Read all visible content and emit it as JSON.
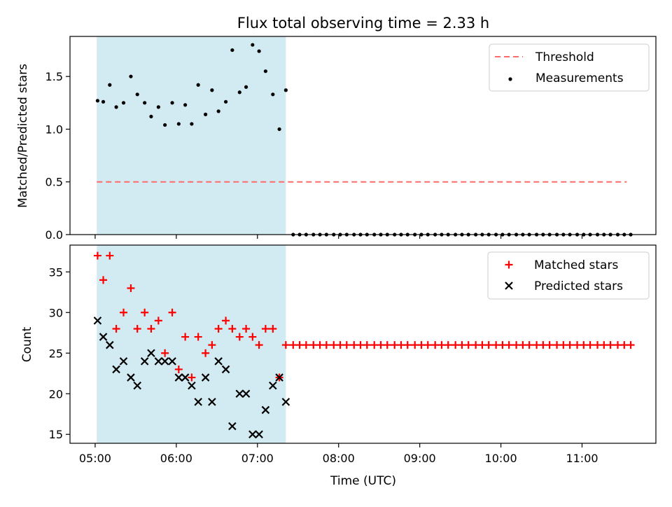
{
  "chart_data": [
    {
      "type": "scatter",
      "title": "Flux total observing time = 2.33 h",
      "xlabel": "",
      "ylabel": "Matched/Predicted stars",
      "ylim": [
        0,
        1.88
      ],
      "yticks": [
        "0.0",
        "0.5",
        "1.0",
        "1.5"
      ],
      "ytick_values": [
        0.0,
        0.5,
        1.0,
        1.5
      ],
      "xlim_hours": [
        4.69,
        11.91
      ],
      "shaded_region_hours": [
        5.02,
        7.35
      ],
      "shade_color": "#add8e6",
      "legend_position": "upper right",
      "threshold": {
        "name": "Threshold",
        "value": 0.5,
        "x_range_hours": [
          5.02,
          11.55
        ],
        "color": "#ff6b6b",
        "style": "dashed"
      },
      "series": [
        {
          "name": "Measurements",
          "color": "#000000",
          "marker": "dot",
          "x_hours": [
            5.03,
            5.1,
            5.18,
            5.26,
            5.35,
            5.44,
            5.52,
            5.61,
            5.69,
            5.78,
            5.86,
            5.95,
            6.03,
            6.11,
            6.19,
            6.27,
            6.36,
            6.44,
            6.52,
            6.61,
            6.69,
            6.78,
            6.86,
            6.94,
            7.02,
            7.1,
            7.19,
            7.27,
            7.35,
            7.44,
            7.52,
            7.6,
            7.69,
            7.77,
            7.85,
            7.94,
            8.02,
            8.1,
            8.19,
            8.27,
            8.35,
            8.44,
            8.52,
            8.6,
            8.69,
            8.77,
            8.85,
            8.94,
            9.02,
            9.1,
            9.19,
            9.27,
            9.35,
            9.44,
            9.52,
            9.6,
            9.69,
            9.77,
            9.85,
            9.94,
            10.02,
            10.1,
            10.19,
            10.27,
            10.35,
            10.44,
            10.52,
            10.6,
            10.69,
            10.77,
            10.85,
            10.94,
            11.02,
            11.1,
            11.19,
            11.27,
            11.35,
            11.44,
            11.52,
            11.6
          ],
          "values": [
            1.27,
            1.26,
            1.42,
            1.21,
            1.25,
            1.5,
            1.33,
            1.25,
            1.12,
            1.21,
            1.04,
            1.25,
            1.05,
            1.23,
            1.05,
            1.42,
            1.14,
            1.37,
            1.17,
            1.26,
            1.75,
            1.35,
            1.4,
            1.8,
            1.74,
            1.55,
            1.33,
            1.0,
            1.37,
            0,
            0,
            0,
            0,
            0,
            0,
            0,
            0,
            0,
            0,
            0,
            0,
            0,
            0,
            0,
            0,
            0,
            0,
            0,
            0,
            0,
            0,
            0,
            0,
            0,
            0,
            0,
            0,
            0,
            0,
            0,
            0,
            0,
            0,
            0,
            0,
            0,
            0,
            0,
            0,
            0,
            0,
            0,
            0,
            0,
            0,
            0,
            0,
            0,
            0,
            0
          ]
        }
      ]
    },
    {
      "type": "scatter",
      "xlabel": "Time (UTC)",
      "ylabel": "Count",
      "ylim": [
        13.9,
        38.3
      ],
      "yticks": [
        "15",
        "20",
        "25",
        "30",
        "35"
      ],
      "ytick_values": [
        15,
        20,
        25,
        30,
        35
      ],
      "xlim_hours": [
        4.69,
        11.91
      ],
      "xticks": [
        "05:00",
        "06:00",
        "07:00",
        "08:00",
        "09:00",
        "10:00",
        "11:00"
      ],
      "xtick_hours": [
        5,
        6,
        7,
        8,
        9,
        10,
        11
      ],
      "shaded_region_hours": [
        5.02,
        7.35
      ],
      "shade_color": "#add8e6",
      "legend_position": "upper right",
      "series": [
        {
          "name": "Matched stars",
          "color": "#ff0000",
          "marker": "plus",
          "x_hours": [
            5.03,
            5.1,
            5.18,
            5.26,
            5.35,
            5.44,
            5.52,
            5.61,
            5.69,
            5.78,
            5.86,
            5.95,
            6.03,
            6.11,
            6.19,
            6.27,
            6.36,
            6.44,
            6.52,
            6.61,
            6.69,
            6.78,
            6.86,
            6.94,
            7.02,
            7.1,
            7.19,
            7.27,
            7.35,
            7.44,
            7.52,
            7.6,
            7.69,
            7.77,
            7.85,
            7.94,
            8.02,
            8.1,
            8.19,
            8.27,
            8.35,
            8.44,
            8.52,
            8.6,
            8.69,
            8.77,
            8.85,
            8.94,
            9.02,
            9.1,
            9.19,
            9.27,
            9.35,
            9.44,
            9.52,
            9.6,
            9.69,
            9.77,
            9.85,
            9.94,
            10.02,
            10.1,
            10.19,
            10.27,
            10.35,
            10.44,
            10.52,
            10.6,
            10.69,
            10.77,
            10.85,
            10.94,
            11.02,
            11.1,
            11.19,
            11.27,
            11.35,
            11.44,
            11.52,
            11.6
          ],
          "values": [
            37,
            34,
            37,
            28,
            30,
            33,
            28,
            30,
            28,
            29,
            25,
            30,
            23,
            27,
            22,
            27,
            25,
            26,
            28,
            29,
            28,
            27,
            28,
            27,
            26,
            28,
            28,
            22,
            26,
            26,
            26,
            26,
            26,
            26,
            26,
            26,
            26,
            26,
            26,
            26,
            26,
            26,
            26,
            26,
            26,
            26,
            26,
            26,
            26,
            26,
            26,
            26,
            26,
            26,
            26,
            26,
            26,
            26,
            26,
            26,
            26,
            26,
            26,
            26,
            26,
            26,
            26,
            26,
            26,
            26,
            26,
            26,
            26,
            26,
            26,
            26,
            26,
            26,
            26,
            26
          ]
        },
        {
          "name": "Predicted stars",
          "color": "#000000",
          "marker": "x",
          "x_hours": [
            5.03,
            5.1,
            5.18,
            5.26,
            5.35,
            5.44,
            5.52,
            5.61,
            5.69,
            5.78,
            5.86,
            5.95,
            6.03,
            6.11,
            6.19,
            6.27,
            6.36,
            6.44,
            6.52,
            6.61,
            6.69,
            6.78,
            6.86,
            6.94,
            7.02,
            7.1,
            7.19,
            7.27,
            7.35
          ],
          "values": [
            29,
            27,
            26,
            23,
            24,
            22,
            21,
            24,
            25,
            24,
            24,
            24,
            22,
            22,
            21,
            19,
            22,
            19,
            24,
            23,
            16,
            20,
            20,
            15,
            15,
            18,
            21,
            22,
            19
          ]
        }
      ]
    }
  ]
}
